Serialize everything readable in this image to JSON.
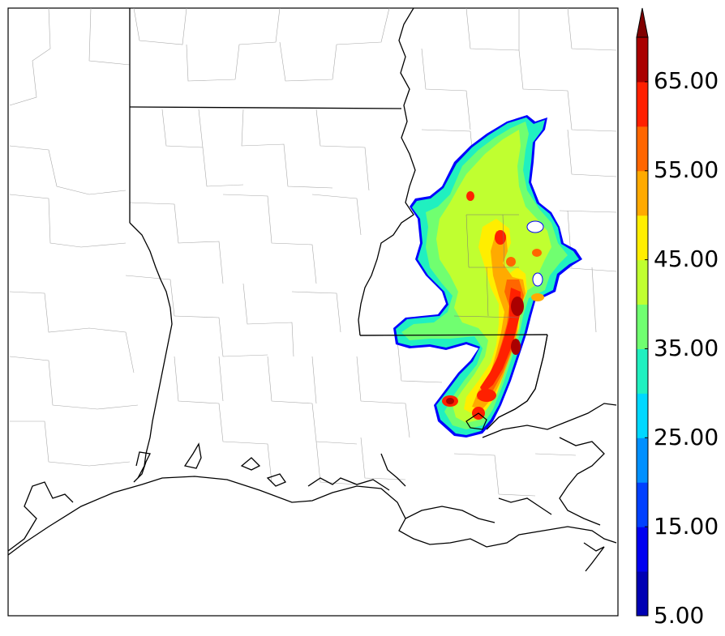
{
  "colorbar": {
    "labels": [
      "5.00",
      "15.00",
      "25.00",
      "35.00",
      "45.00",
      "55.00",
      "65.00"
    ],
    "levels": [
      5,
      10,
      15,
      20,
      25,
      30,
      35,
      40,
      45,
      50,
      55,
      60,
      65,
      70
    ],
    "colors": [
      "#0000b4",
      "#0000f0",
      "#0040ff",
      "#0090ff",
      "#00d8ff",
      "#20f0c0",
      "#70ff70",
      "#c0ff30",
      "#ffee00",
      "#ffaa00",
      "#ff6600",
      "#ff2000",
      "#aa0000"
    ],
    "extend": "max",
    "extend_color": "#800000"
  },
  "map": {
    "land_color": "#ffffff",
    "border_color": "#000000",
    "county_color": "#999999"
  }
}
